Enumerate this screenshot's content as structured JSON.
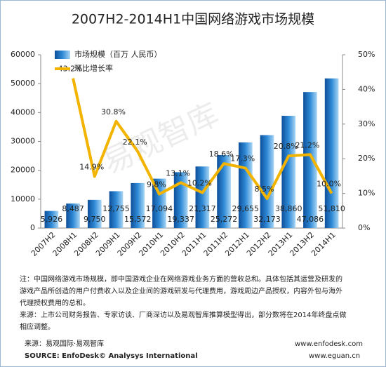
{
  "chart_data": {
    "type": "bar_line",
    "title": "2007H2-2014H1中国网络游戏市场规模",
    "categories": [
      "2007H2",
      "2008H1",
      "2008H2",
      "2009H1",
      "2009H2",
      "2010H1",
      "2010H2",
      "2011H1",
      "2011H2",
      "2012H1",
      "2012H2",
      "2013H1",
      "2013H2",
      "2014H1"
    ],
    "series": [
      {
        "name": "市场规模（百万 人民币）",
        "type": "bar",
        "color": "#1f6fb8",
        "values": [
          5926,
          8487,
          9750,
          12755,
          15572,
          17094,
          19337,
          21317,
          25272,
          29655,
          32173,
          38860,
          47086,
          51810
        ],
        "value_labels": [
          "5,926",
          "8,487",
          "9,750",
          "12,755",
          "15,572",
          "17,094",
          "19,337",
          "21,317",
          "25,272",
          "29,655",
          "32,173",
          "38,860",
          "47,086",
          "51,810"
        ]
      },
      {
        "name": "环比增长率",
        "type": "line",
        "axis": "y2",
        "color": "#f2b400",
        "values": [
          null,
          43.2,
          14.9,
          30.8,
          22.1,
          9.8,
          13.1,
          10.2,
          18.6,
          17.3,
          8.5,
          20.8,
          21.2,
          10.0
        ],
        "value_labels": [
          null,
          "43.2%",
          "14.9%",
          "30.8%",
          "22.1%",
          "9.8%",
          "13.1%",
          "10.2%",
          "18.6%",
          "17.3%",
          "8.5%",
          "20.8%",
          "21.2%",
          "10.0%"
        ]
      }
    ],
    "ylim": [
      0,
      60000
    ],
    "yticks": [
      0,
      10000,
      20000,
      30000,
      40000,
      50000,
      60000
    ],
    "y2lim": [
      0,
      50
    ],
    "y2ticks": [
      {
        "value": 0,
        "label": "0%"
      },
      {
        "value": 10,
        "label": "10%"
      },
      {
        "value": 20,
        "label": "20%"
      },
      {
        "value": 30,
        "label": "30%"
      },
      {
        "value": 40,
        "label": "40%"
      },
      {
        "value": 50,
        "label": "50%"
      }
    ],
    "legend": "upper left",
    "watermark": "易观智库",
    "notes": [
      "注：中国网络游戏市场规模，即中国游戏企业在网络游戏业务方面的营收总和。具体包括其运营及研发的",
      "游戏产品所创造的用户付费收入以及企业间的游戏研发与代理费用，游戏周边产品授权，内容外包与海外",
      "代理授权费用的总和。",
      "来源：上市公司财务报告、专家访谈、厂商深访以及易观智库推算模型得出，部分数将在2014年终盘点做",
      "相应调整。"
    ],
    "source": "来源：易观国际·易观智库",
    "source_en": "SOURCE: EnfoDesk© Analysys International",
    "site1": "www.enfodesk.com",
    "site2": "www.eguan.cn"
  }
}
